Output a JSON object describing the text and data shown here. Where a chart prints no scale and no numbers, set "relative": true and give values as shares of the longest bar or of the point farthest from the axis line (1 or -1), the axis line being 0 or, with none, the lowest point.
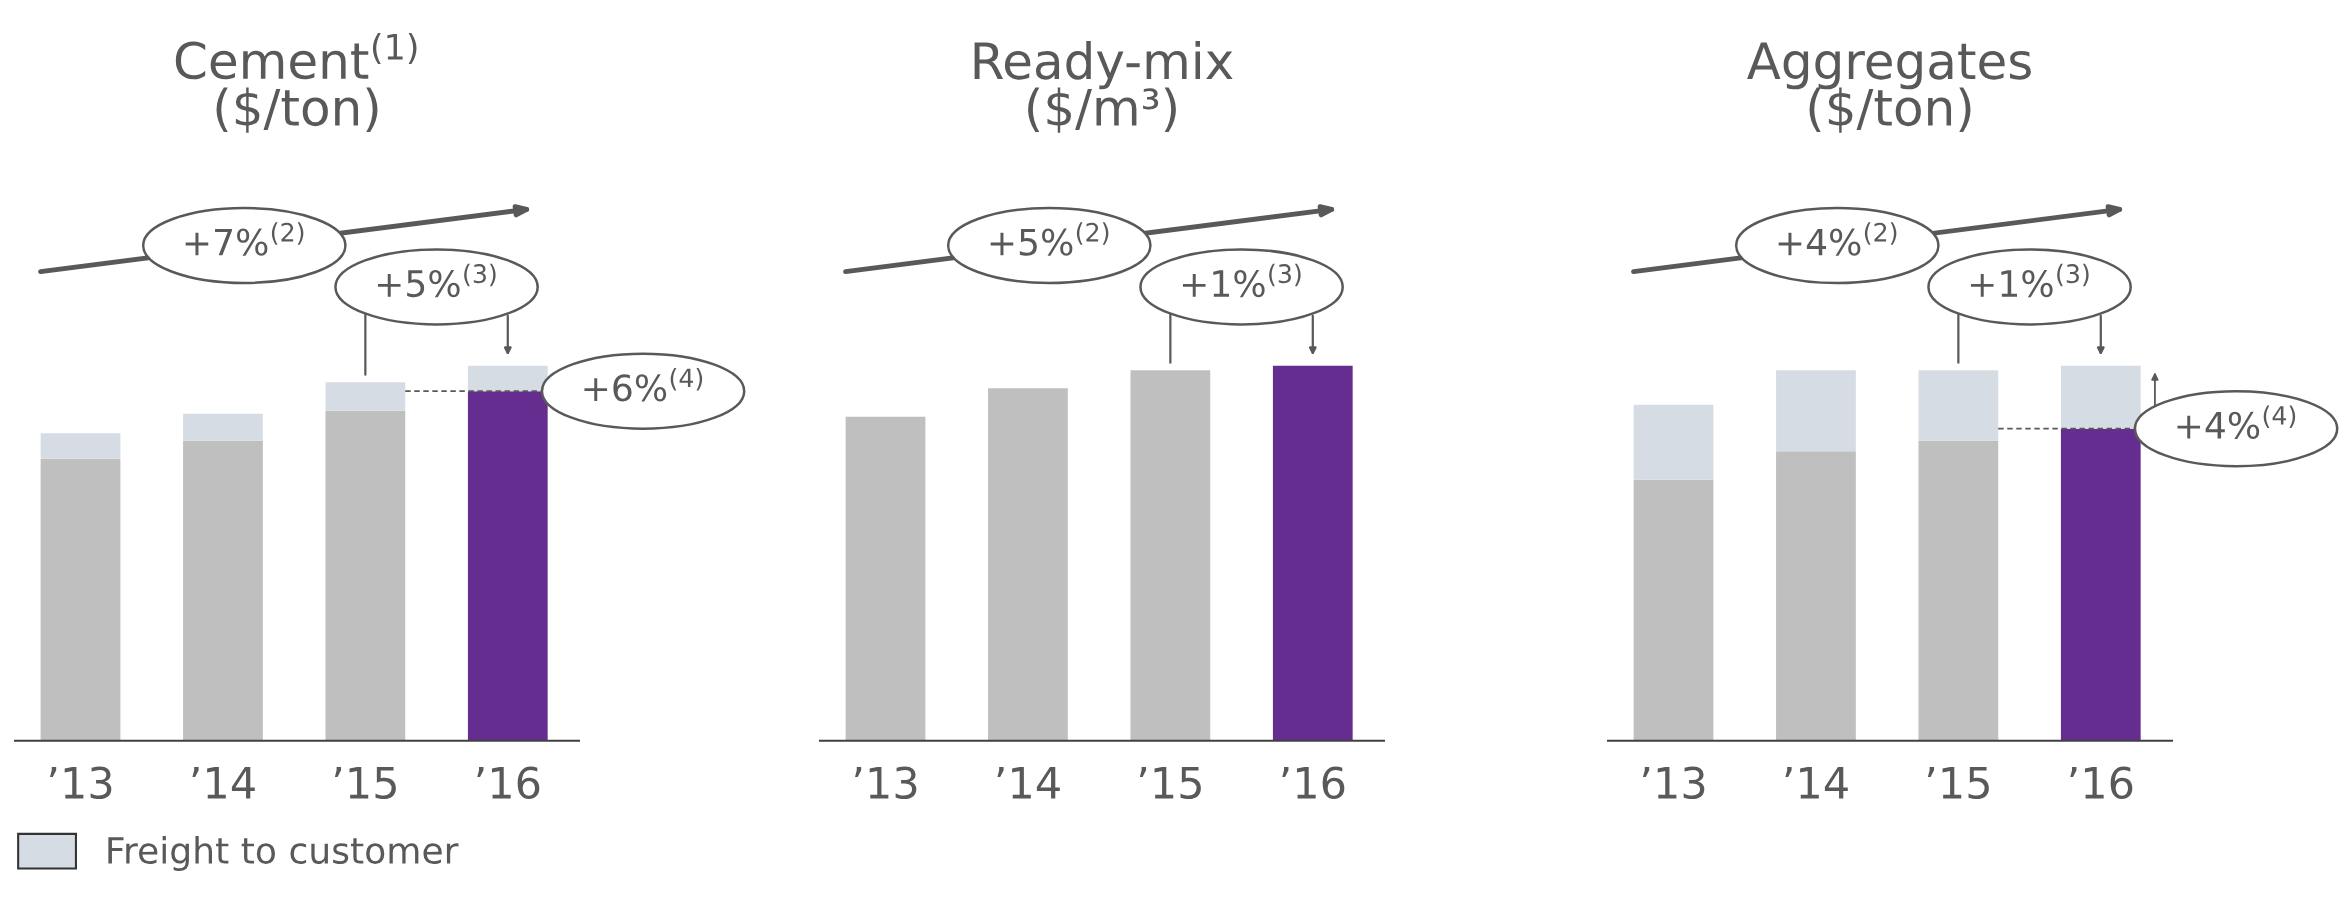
{
  "chart_data": [
    {
      "type": "bar",
      "title": "Cement$^{(1)}$\n($/ton)",
      "categories": [
        "’13",
        "’14",
        "’15",
        "’16"
      ],
      "relative": true,
      "stacked": true,
      "legend": "bottom left",
      "series": [
        {
          "colors": [
            "#bfbfbf",
            "#bfbfbf",
            "#bfbfbf",
            "#662d91"
          ],
          "values": [
            0.752,
            0.8,
            0.88,
            0.932
          ]
        },
        {
          "name": "Freight to customer",
          "color": "#d6dce4",
          "values": [
            0.068,
            0.072,
            0.076,
            0.068
          ]
        }
      ],
      "annotations": [
        "+7%$^{(2)}$",
        "+5%$^{(3)}$",
        "+6%$^{(4)}$"
      ]
    },
    {
      "type": "bar",
      "title": "Ready-mix\n($/m³)",
      "categories": [
        "’13",
        "’14",
        "’15",
        "’16"
      ],
      "relative": true,
      "series": [
        {
          "colors": [
            "#bfbfbf",
            "#bfbfbf",
            "#bfbfbf",
            "#662d91"
          ],
          "values": [
            0.864,
            0.94,
            0.988,
            1
          ]
        }
      ],
      "annotations": [
        "+5%$^{(2)}$",
        "+1%$^{(3)}$"
      ]
    },
    {
      "type": "bar",
      "title": "Aggregates\n($/ton)",
      "categories": [
        "’13",
        "’14",
        "’15",
        "’16"
      ],
      "relative": true,
      "stacked": true,
      "series": [
        {
          "colors": [
            "#bfbfbf",
            "#bfbfbf",
            "#bfbfbf",
            "#662d91"
          ],
          "values": [
            0.696,
            0.772,
            0.8,
            0.832
          ]
        },
        {
          "color": "#d6dce4",
          "values": [
            0.2,
            0.216,
            0.188,
            0.168
          ]
        }
      ],
      "annotations": [
        "+4%$^{(2)}$",
        "+1%$^{(3)}$",
        "+4%$^{(4)}$"
      ]
    }
  ]
}
